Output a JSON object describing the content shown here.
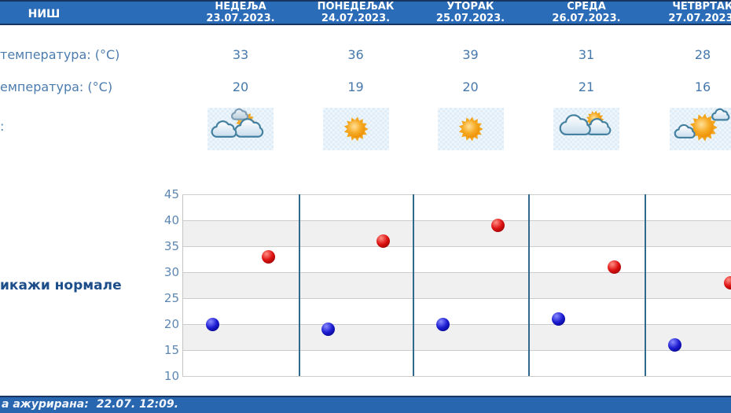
{
  "header": {
    "city": "НИШ",
    "days": [
      {
        "name": "НЕДЕЉА",
        "date": "23.07.2023."
      },
      {
        "name": "ПОНЕДЕЉАК",
        "date": "24.07.2023."
      },
      {
        "name": "УТОРАК",
        "date": "25.07.2023."
      },
      {
        "name": "СРЕДА",
        "date": "26.07.2023."
      },
      {
        "name": "ЧЕТВРТАК",
        "date": "27.07.2023."
      }
    ]
  },
  "rows": {
    "max_temp_label": "температура: (°C)",
    "min_temp_label": "емпература: (°C)",
    "icons_label": ":",
    "max_temps": [
      "33",
      "36",
      "39",
      "31",
      "28"
    ],
    "min_temps": [
      "20",
      "19",
      "20",
      "21",
      "16"
    ],
    "icons": [
      "sun-behind-clouds-icon",
      "sunny-icon",
      "sunny-icon",
      "clouds-with-sun-icon",
      "sun-with-small-clouds-icon"
    ]
  },
  "normals_link_label": "икажи нормале",
  "footer": {
    "updated_text": "а ажурирана:  22.07. 12:09."
  },
  "chart_data": {
    "type": "scatter",
    "categories": [
      "23.07.2023.",
      "24.07.2023.",
      "25.07.2023.",
      "26.07.2023.",
      "27.07.2023."
    ],
    "series": [
      {
        "name": "max",
        "color": "#cc0000",
        "values": [
          33,
          36,
          39,
          31,
          28
        ]
      },
      {
        "name": "min",
        "color": "#0000cc",
        "values": [
          20,
          19,
          20,
          21,
          16
        ]
      }
    ],
    "ylim": [
      10,
      45
    ],
    "yticks": [
      45,
      40,
      35,
      30,
      25,
      20,
      15,
      10
    ],
    "grid": true,
    "band_fill": "alternating horizontal 5-degree bands",
    "legend": "none"
  },
  "colors": {
    "header_bar": "#2b6cb8",
    "navy_border": "#17355f",
    "table_text": "#4678ac",
    "y_axis_text": "#5e87b2",
    "link_text": "#1d4e8a",
    "band_gray": "#f0f0f0",
    "gridline": "#cccccc",
    "day_separator": "#31688e",
    "max_dot": "#cc0000",
    "min_dot": "#0000cc"
  }
}
